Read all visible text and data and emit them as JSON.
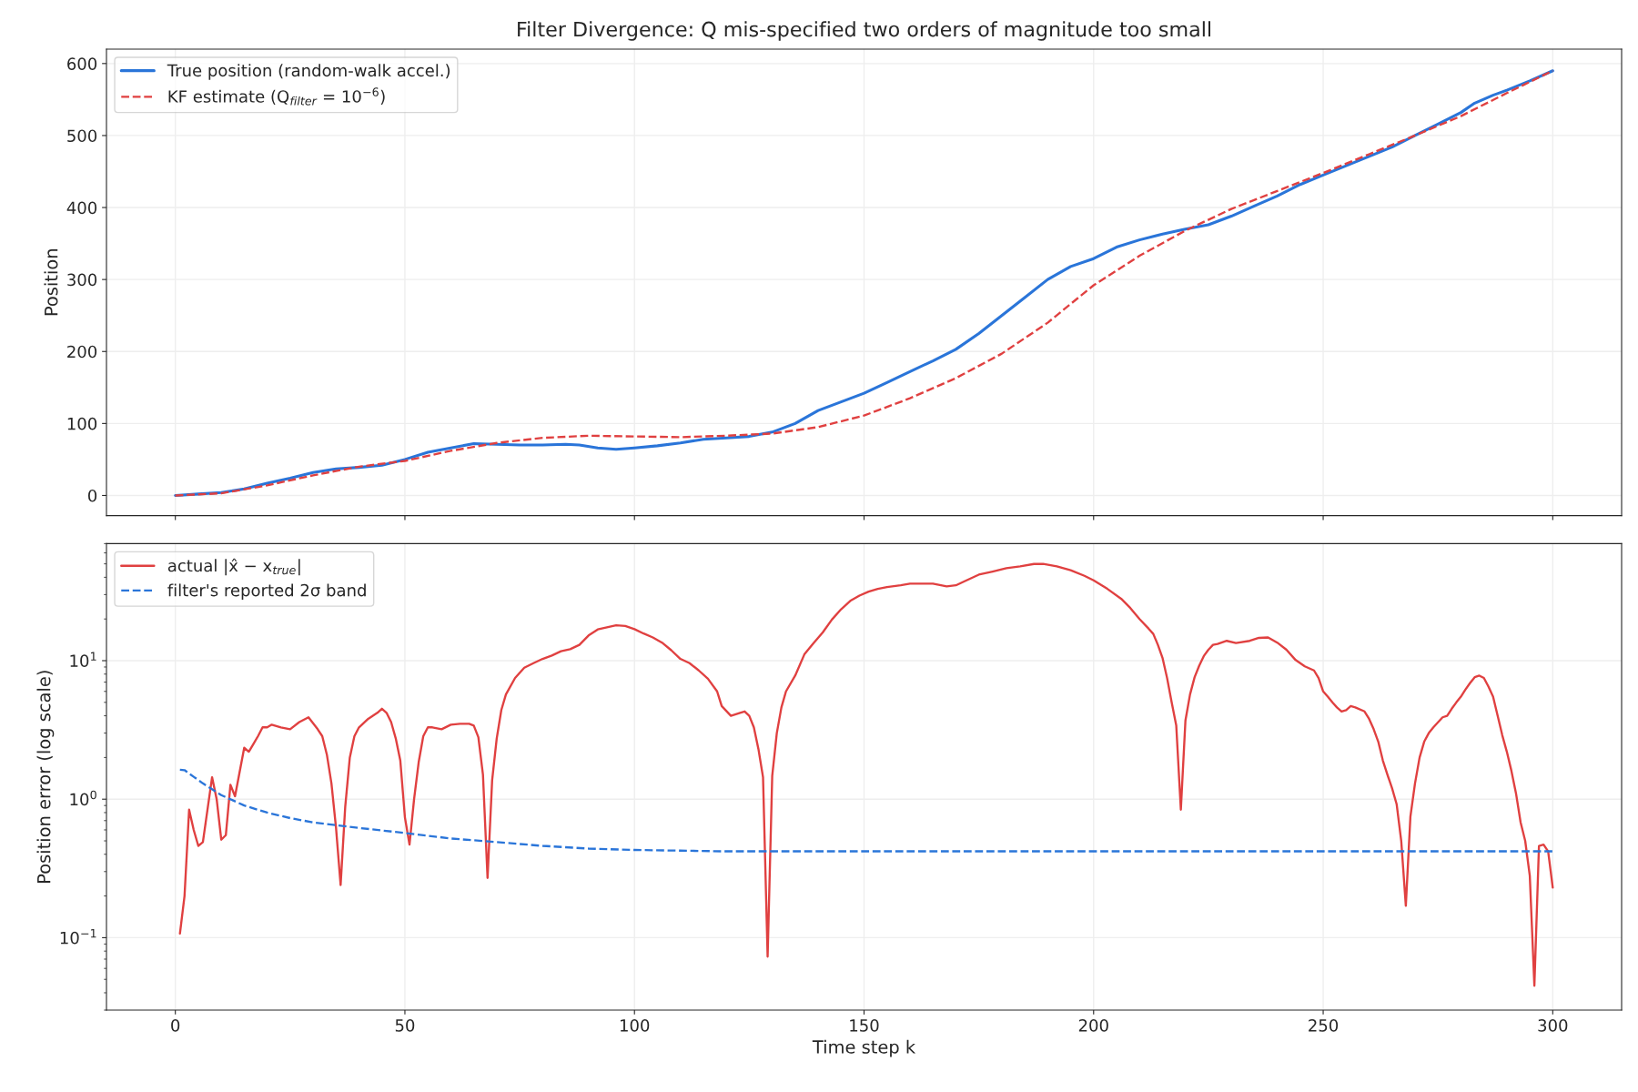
{
  "chart_data": [
    {
      "type": "line",
      "title": "Filter Divergence: Q mis-specified two orders of magnitude too small",
      "ylabel": "Position",
      "xlim": [
        -15,
        315
      ],
      "xticks": [
        0,
        50,
        100,
        150,
        200,
        250,
        300
      ],
      "ylim": [
        -28,
        620
      ],
      "yticks": [
        0,
        100,
        200,
        300,
        400,
        500,
        600
      ],
      "grid": true,
      "legend": "top left",
      "tick_labels": "y",
      "series": [
        {
          "name": "True position (random-walk accel.)",
          "color": "#2a75d9",
          "line_style": "solid",
          "x": [
            0,
            5,
            10,
            15,
            20,
            25,
            30,
            35,
            40,
            45,
            50,
            55,
            60,
            65,
            70,
            75,
            80,
            85,
            88,
            92,
            96,
            100,
            105,
            110,
            115,
            120,
            125,
            130,
            135,
            140,
            145,
            150,
            155,
            160,
            165,
            170,
            175,
            180,
            185,
            190,
            195,
            200,
            205,
            210,
            215,
            220,
            225,
            230,
            235,
            240,
            245,
            250,
            255,
            260,
            265,
            270,
            275,
            280,
            283,
            287,
            290,
            295,
            300
          ],
          "values": [
            0,
            2,
            4,
            9,
            17,
            24,
            32,
            37,
            39,
            42,
            50,
            60,
            66,
            72,
            71,
            70,
            70,
            71,
            70,
            66,
            64,
            66,
            69,
            73,
            78,
            80,
            82,
            88,
            100,
            118,
            130,
            142,
            157,
            172,
            187,
            203,
            225,
            250,
            275,
            300,
            318,
            329,
            345,
            355,
            363,
            370,
            376,
            388,
            402,
            416,
            432,
            445,
            458,
            471,
            484,
            500,
            516,
            532,
            545,
            556,
            563,
            576,
            590
          ]
        },
        {
          "name": "KF estimate (Q$_{filter}$ = 10$^{−6}$)",
          "color": "#e04040",
          "line_style": "dashed",
          "x": [
            0,
            10,
            20,
            30,
            40,
            50,
            60,
            70,
            80,
            90,
            100,
            110,
            120,
            130,
            140,
            150,
            160,
            170,
            180,
            190,
            200,
            210,
            220,
            230,
            240,
            250,
            260,
            270,
            280,
            290,
            300
          ],
          "values": [
            0,
            3,
            14,
            28,
            40,
            48,
            62,
            73,
            80,
            83,
            82,
            81,
            83,
            86,
            95,
            111,
            135,
            163,
            197,
            240,
            292,
            333,
            368,
            398,
            423,
            448,
            474,
            500,
            527,
            559,
            590
          ]
        }
      ]
    },
    {
      "type": "line",
      "xlabel": "Time step k",
      "ylabel": "Position error (log scale)",
      "log": "y",
      "xlim": [
        -15,
        315
      ],
      "xticks": [
        0,
        50,
        100,
        150,
        200,
        250,
        300
      ],
      "ylim": [
        0.03,
        70
      ],
      "yticks": [
        {
          "value": 0.1,
          "label": "10$^{−1}$"
        },
        {
          "value": 1,
          "label": "10$^{0}$"
        },
        {
          "value": 10,
          "label": "10$^{1}$"
        }
      ],
      "grid": true,
      "legend": "top left",
      "series": [
        {
          "name": "actual |x̂ − x$_{true}$|",
          "color": "#e04040",
          "line_style": "solid",
          "x": [
            1,
            2,
            3,
            4,
            5,
            6,
            8,
            9,
            10,
            11,
            12,
            13,
            15,
            16,
            17,
            18,
            19,
            20,
            21,
            23,
            25,
            27,
            29,
            31,
            32,
            33,
            34,
            35,
            36,
            37,
            38,
            39,
            40,
            42,
            44,
            45,
            46,
            47,
            48,
            49,
            50,
            51,
            52,
            53,
            54,
            55,
            56,
            58,
            60,
            62,
            64,
            65,
            66,
            67,
            68,
            69,
            70,
            71,
            72,
            74,
            76,
            78,
            80,
            82,
            84,
            86,
            88,
            90,
            92,
            94,
            96,
            98,
            100,
            102,
            104,
            106,
            108,
            110,
            112,
            114,
            116,
            118,
            119,
            121,
            123,
            124,
            125,
            126,
            127,
            128,
            129,
            130,
            131,
            132,
            133,
            135,
            137,
            139,
            141,
            143,
            145,
            147,
            149,
            151,
            153,
            155,
            158,
            160,
            163,
            165,
            168,
            170,
            172,
            175,
            178,
            181,
            184,
            187,
            189,
            192,
            195,
            198,
            200,
            203,
            206,
            208,
            210,
            212,
            213,
            214,
            215,
            216,
            217,
            218,
            219,
            220,
            221,
            222,
            223,
            224,
            225,
            226,
            227,
            229,
            231,
            234,
            236,
            238,
            240,
            242,
            244,
            246,
            248,
            249,
            250,
            251,
            252,
            253,
            254,
            255,
            256,
            257,
            259,
            260,
            261,
            262,
            263,
            264,
            265,
            266,
            267,
            268,
            269,
            270,
            271,
            272,
            273,
            274,
            276,
            277,
            278,
            279,
            280,
            281,
            282,
            283,
            284,
            285,
            286,
            287,
            288,
            289,
            290,
            291,
            292,
            293,
            294,
            295,
            296,
            297,
            298,
            299,
            300
          ],
          "values": [
            0.107,
            0.2,
            0.84,
            0.6,
            0.46,
            0.49,
            1.44,
            1.0,
            0.51,
            0.55,
            1.27,
            1.05,
            2.35,
            2.2,
            2.5,
            2.85,
            3.3,
            3.3,
            3.45,
            3.3,
            3.2,
            3.6,
            3.9,
            3.2,
            2.85,
            2.1,
            1.3,
            0.62,
            0.24,
            0.88,
            2.0,
            2.85,
            3.3,
            3.8,
            4.2,
            4.5,
            4.2,
            3.6,
            2.75,
            1.9,
            0.74,
            0.47,
            1.0,
            1.85,
            2.85,
            3.3,
            3.3,
            3.2,
            3.45,
            3.5,
            3.5,
            3.4,
            2.8,
            1.5,
            0.27,
            1.37,
            2.75,
            4.4,
            5.7,
            7.5,
            8.9,
            9.6,
            10.3,
            10.9,
            11.7,
            12.1,
            13,
            15.2,
            16.8,
            17.4,
            18,
            17.8,
            16.9,
            15.7,
            14.7,
            13.5,
            11.9,
            10.3,
            9.6,
            8.5,
            7.4,
            6,
            4.7,
            4.0,
            4.2,
            4.3,
            4.0,
            3.3,
            2.3,
            1.44,
            0.073,
            1.47,
            3,
            4.6,
            6,
            7.8,
            11.1,
            13.4,
            16,
            19.8,
            23.5,
            27,
            29.5,
            31.5,
            33,
            34,
            35,
            36,
            36,
            36,
            34.4,
            35,
            37.6,
            41.8,
            44,
            46.5,
            48,
            49.9,
            50,
            48,
            45,
            41,
            38,
            33,
            28,
            24,
            20,
            17,
            15.6,
            13,
            10.5,
            7.5,
            5,
            3.4,
            0.84,
            3.7,
            5.7,
            7.6,
            9.2,
            10.8,
            12,
            13,
            13.2,
            13.9,
            13.4,
            13.9,
            14.6,
            14.7,
            13.5,
            12,
            10.1,
            9.1,
            8.5,
            7.5,
            6,
            5.5,
            5.0,
            4.6,
            4.3,
            4.4,
            4.7,
            4.6,
            4.3,
            3.8,
            3.2,
            2.6,
            1.9,
            1.5,
            1.2,
            0.92,
            0.5,
            0.17,
            0.75,
            1.3,
            2.0,
            2.6,
            3.0,
            3.3,
            3.9,
            4.0,
            4.5,
            5.0,
            5.5,
            6.2,
            6.9,
            7.6,
            7.8,
            7.5,
            6.5,
            5.5,
            4.0,
            2.9,
            2.2,
            1.6,
            1.1,
            0.68,
            0.5,
            0.28,
            0.045,
            0.46,
            0.47,
            0.42,
            0.23
          ]
        },
        {
          "name": "filter's reported 2σ band",
          "color": "#2a75d9",
          "line_style": "dashed",
          "x": [
            1,
            2,
            4,
            6,
            8,
            10,
            15,
            20,
            25,
            30,
            40,
            50,
            60,
            70,
            80,
            90,
            100,
            110,
            120,
            130,
            300
          ],
          "values": [
            1.63,
            1.62,
            1.45,
            1.3,
            1.18,
            1.07,
            0.9,
            0.8,
            0.73,
            0.68,
            0.62,
            0.57,
            0.52,
            0.49,
            0.46,
            0.44,
            0.43,
            0.425,
            0.42,
            0.42,
            0.42
          ]
        }
      ]
    }
  ]
}
